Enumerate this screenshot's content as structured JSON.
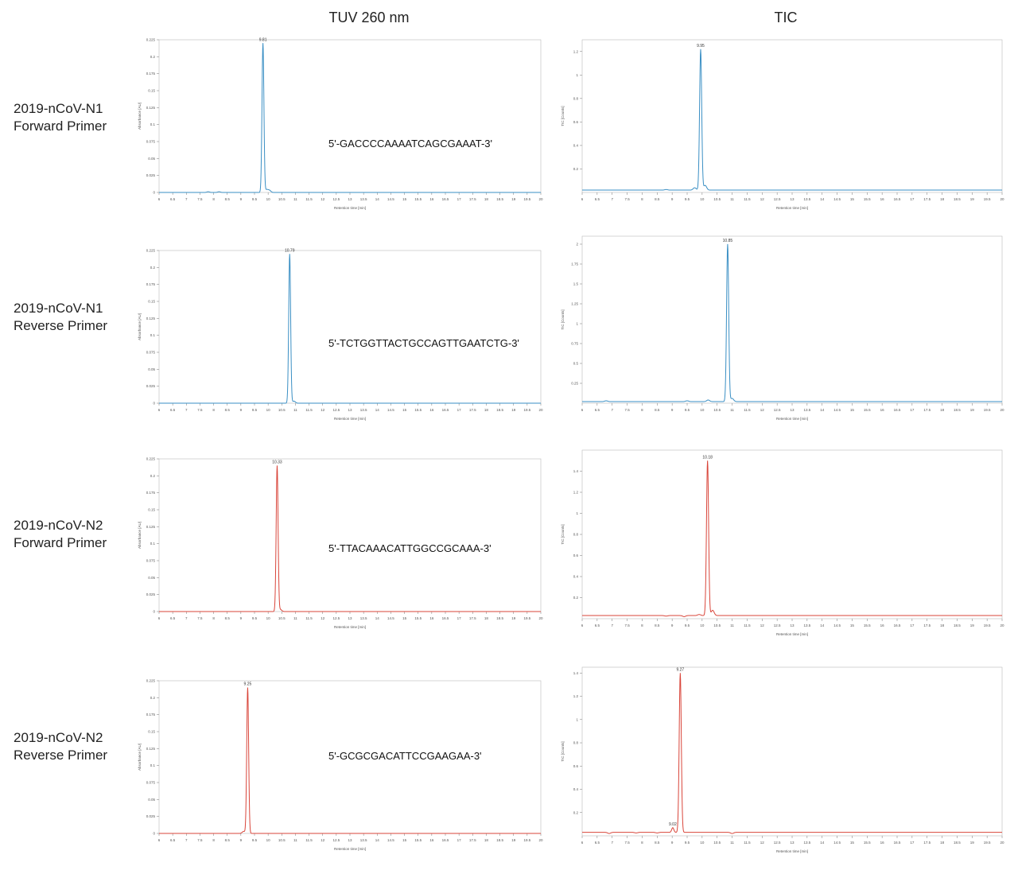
{
  "header": {
    "col1": "TUV 260 nm",
    "col2": "TIC"
  },
  "rows": [
    {
      "line1": "2019-nCoV-N1",
      "line2": "Forward Primer",
      "sequence": "5'-GACCCCAAAATCAGCGAAAT-3'"
    },
    {
      "line1": "2019-nCoV-N1",
      "line2": "Reverse Primer",
      "sequence": "5'-TCTGGTTACTGCCAGTTGAATCTG-3'"
    },
    {
      "line1": "2019-nCoV-N2",
      "line2": "Forward Primer",
      "sequence": "5'-TTACAAACATTGGCCGCAAA-3'"
    },
    {
      "line1": "2019-nCoV-N2",
      "line2": "Reverse Primer",
      "sequence": "5'-GCGCGACATTCCGAAGAA-3'"
    }
  ],
  "colors": {
    "blue": "#3a8fc4",
    "red": "#d9453a"
  },
  "chart_data": [
    {
      "type": "line",
      "panel": "tuv-n1-forward",
      "color": "blue",
      "xlabel": "Retention time [min]",
      "ylabel": "Absorbance [AU]",
      "xlim": [
        6,
        20
      ],
      "ylim": [
        0,
        0.225
      ],
      "yticks": [
        0,
        0.025,
        0.05,
        0.075,
        0.1,
        0.125,
        0.15,
        0.175,
        0.2,
        0.225
      ],
      "peaks": [
        {
          "x": 9.81,
          "y": 0.22,
          "label": "9.81"
        }
      ],
      "minor": [
        [
          9.95,
          0.004
        ],
        [
          10.05,
          0.003
        ],
        [
          7.8,
          0.001
        ],
        [
          8.2,
          0.001
        ]
      ],
      "baseline": 0
    },
    {
      "type": "line",
      "panel": "tic-n1-forward",
      "color": "blue",
      "xlabel": "Retention time [min]",
      "ylabel": "TIC [Counts]",
      "xlim": [
        6,
        20
      ],
      "ylim": [
        0,
        1.3
      ],
      "yticks": [
        0.2,
        0.4,
        0.6,
        0.8,
        1.0,
        1.2
      ],
      "peaks": [
        {
          "x": 9.95,
          "y": 1.22,
          "label": "9.95"
        }
      ],
      "minor": [
        [
          10.1,
          0.06
        ],
        [
          9.75,
          0.04
        ],
        [
          8.8,
          0.025
        ],
        [
          8.2,
          0.02
        ],
        [
          9.3,
          0.02
        ]
      ],
      "baseline": 0.02
    },
    {
      "type": "line",
      "panel": "tuv-n1-reverse",
      "color": "blue",
      "xlabel": "Retention time [min]",
      "ylabel": "Absorbance [AU]",
      "xlim": [
        6,
        20
      ],
      "ylim": [
        0,
        0.225
      ],
      "yticks": [
        0,
        0.025,
        0.05,
        0.075,
        0.1,
        0.125,
        0.15,
        0.175,
        0.2,
        0.225
      ],
      "peaks": [
        {
          "x": 10.79,
          "y": 0.22,
          "label": "10.79"
        }
      ],
      "minor": [
        [
          10.95,
          0.003
        ]
      ],
      "baseline": 0
    },
    {
      "type": "line",
      "panel": "tic-n1-reverse",
      "color": "blue",
      "xlabel": "Retention time [min]",
      "ylabel": "TIC [Counts]",
      "xlim": [
        6,
        20
      ],
      "ylim": [
        0,
        2.1
      ],
      "yticks": [
        0.25,
        0.5,
        0.75,
        1.0,
        1.25,
        1.5,
        1.75,
        2.0
      ],
      "peaks": [
        {
          "x": 10.85,
          "y": 2.0,
          "label": "10.85"
        }
      ],
      "minor": [
        [
          11.0,
          0.06
        ],
        [
          10.2,
          0.04
        ],
        [
          6.8,
          0.03
        ],
        [
          9.5,
          0.03
        ]
      ],
      "baseline": 0.02
    },
    {
      "type": "line",
      "panel": "tuv-n2-forward",
      "color": "red",
      "xlabel": "Retention time [min]",
      "ylabel": "Absorbance [AU]",
      "xlim": [
        6,
        20
      ],
      "ylim": [
        0,
        0.225
      ],
      "yticks": [
        0,
        0.025,
        0.05,
        0.075,
        0.1,
        0.125,
        0.15,
        0.175,
        0.2,
        0.225
      ],
      "peaks": [
        {
          "x": 10.33,
          "y": 0.215,
          "label": "10.33"
        }
      ],
      "minor": [
        [
          10.45,
          0.003
        ]
      ],
      "baseline": 0
    },
    {
      "type": "line",
      "panel": "tic-n2-forward",
      "color": "red",
      "xlabel": "Retention time [min]",
      "ylabel": "TIC [Counts]",
      "xlim": [
        6,
        20
      ],
      "ylim": [
        0,
        1.6
      ],
      "yticks": [
        0.2,
        0.4,
        0.6,
        0.8,
        1.0,
        1.2,
        1.4
      ],
      "peaks": [
        {
          "x": 10.18,
          "y": 1.5,
          "label": "10.18"
        }
      ],
      "minor": [
        [
          10.35,
          0.08
        ],
        [
          9.9,
          0.04
        ],
        [
          8.8,
          0.025
        ],
        [
          9.4,
          0.02
        ]
      ],
      "baseline": 0.03
    },
    {
      "type": "line",
      "panel": "tuv-n2-reverse",
      "color": "red",
      "xlabel": "Retention time [min]",
      "ylabel": "Absorbance [AU]",
      "xlim": [
        6,
        20
      ],
      "ylim": [
        0,
        0.225
      ],
      "yticks": [
        0,
        0.025,
        0.05,
        0.075,
        0.1,
        0.125,
        0.15,
        0.175,
        0.2,
        0.225
      ],
      "peaks": [
        {
          "x": 9.25,
          "y": 0.215,
          "label": "9.25"
        }
      ],
      "minor": [
        [
          9.1,
          0.003
        ]
      ],
      "baseline": 0
    },
    {
      "type": "line",
      "panel": "tic-n2-reverse",
      "color": "red",
      "xlabel": "Retention time [min]",
      "ylabel": "TIC [Counts]",
      "xlim": [
        6,
        20
      ],
      "ylim": [
        0,
        1.45
      ],
      "yticks": [
        0.2,
        0.4,
        0.6,
        0.8,
        1.0,
        1.2,
        1.4
      ],
      "peaks": [
        {
          "x": 9.27,
          "y": 1.4,
          "label": "9.27"
        },
        {
          "x": 9.02,
          "y": 0.07,
          "label": "9.02"
        }
      ],
      "minor": [
        [
          7.8,
          0.025
        ],
        [
          8.5,
          0.025
        ],
        [
          6.9,
          0.02
        ],
        [
          11.0,
          0.02
        ]
      ],
      "baseline": 0.03
    }
  ]
}
